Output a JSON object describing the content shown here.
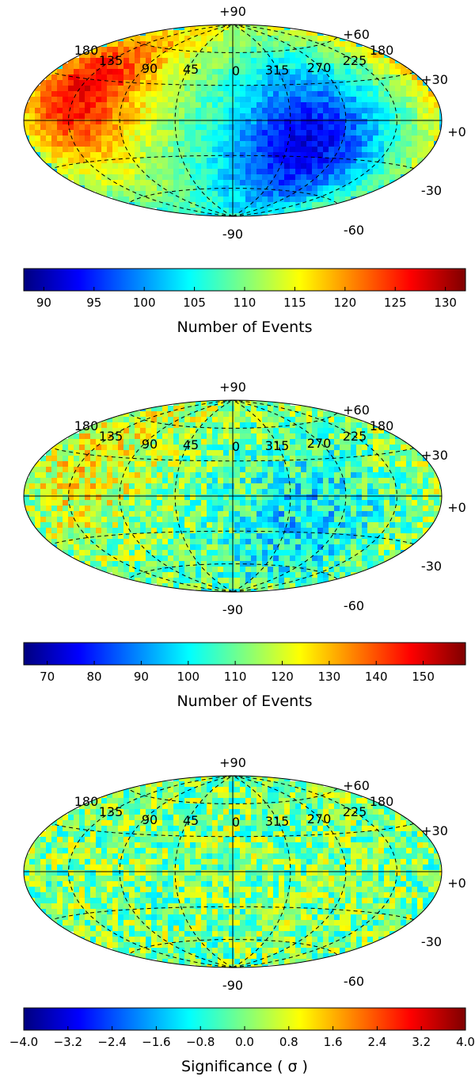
{
  "colors": {
    "jet": [
      "#00007f",
      "#0000ff",
      "#007fff",
      "#00ffff",
      "#7fff7f",
      "#ffff00",
      "#ff7f00",
      "#ff0000",
      "#7f0000"
    ],
    "line": "#000000"
  },
  "chart_data": [
    {
      "type": "heatmap",
      "projection": "hammer-aitoff",
      "lon_labels": [
        "180",
        "135",
        "90",
        "45",
        "0",
        "315",
        "270",
        "225",
        "180"
      ],
      "lat_labels_top": "+90",
      "lat_labels_bottom": "-90",
      "lat_labels_right": [
        "+60",
        "+30",
        "+0",
        "-30",
        "-60"
      ],
      "colorbar": {
        "ticks": [
          "90",
          "95",
          "100",
          "105",
          "110",
          "115",
          "120",
          "125",
          "130"
        ],
        "range": [
          88,
          132
        ],
        "label": "Number of Events"
      },
      "features": [
        {
          "lon": 130,
          "lat": 22,
          "level": 0.88,
          "spread": 40
        },
        {
          "lon": 300,
          "lat": -20,
          "level": 0.1,
          "spread": 45
        }
      ],
      "noise": 0.06
    },
    {
      "type": "heatmap",
      "projection": "hammer-aitoff",
      "lon_labels": [
        "180",
        "135",
        "90",
        "45",
        "0",
        "315",
        "270",
        "225",
        "180"
      ],
      "lat_labels_top": "+90",
      "lat_labels_bottom": "-90",
      "lat_labels_right": [
        "+60",
        "+30",
        "+0",
        "-30",
        "-60"
      ],
      "colorbar": {
        "ticks": [
          "70",
          "80",
          "90",
          "100",
          "110",
          "120",
          "130",
          "140",
          "150"
        ],
        "range": [
          65,
          159
        ],
        "label": "Number of Events"
      },
      "features": [
        {
          "lon": 130,
          "lat": 22,
          "level": 0.62,
          "spread": 40
        },
        {
          "lon": 300,
          "lat": -20,
          "level": 0.35,
          "spread": 45
        }
      ],
      "noise": 0.14
    },
    {
      "type": "heatmap",
      "projection": "hammer-aitoff",
      "lon_labels": [
        "180",
        "135",
        "90",
        "45",
        "0",
        "315",
        "270",
        "225",
        "180"
      ],
      "lat_labels_top": "+90",
      "lat_labels_bottom": "-90",
      "lat_labels_right": [
        "+60",
        "+30",
        "+0",
        "-30",
        "-60"
      ],
      "colorbar": {
        "ticks": [
          "−4.0",
          "−3.2",
          "−2.4",
          "−1.6",
          "−0.8",
          "0.0",
          "0.8",
          "1.6",
          "2.4",
          "3.2",
          "4.0"
        ],
        "range": [
          -4.0,
          4.0
        ],
        "label": "Significance ( σ )"
      },
      "features": [],
      "noise": 0.15
    }
  ]
}
